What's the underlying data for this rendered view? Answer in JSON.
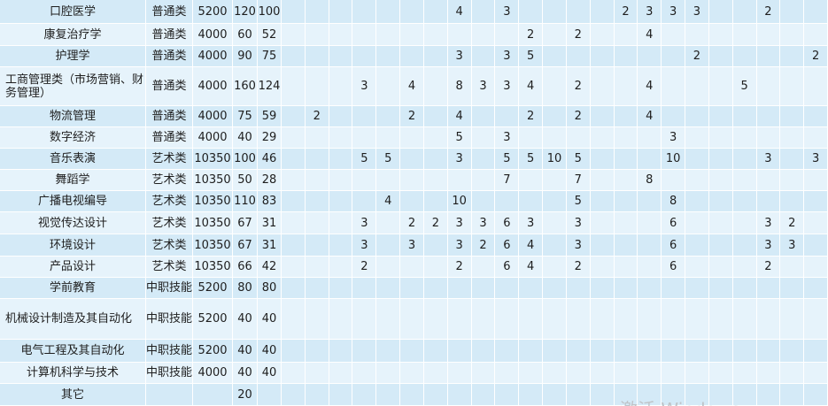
{
  "table": {
    "rows": [
      {
        "name": "口腔医学",
        "type": "普通类",
        "fee": 5200,
        "plan": 120,
        "count": 100,
        "cells": [
          null,
          null,
          null,
          null,
          null,
          null,
          null,
          4,
          null,
          3,
          null,
          null,
          null,
          null,
          2,
          3,
          3,
          3,
          null,
          null,
          2,
          null,
          null
        ]
      },
      {
        "name": "康复治疗学",
        "type": "普通类",
        "fee": 4000,
        "plan": 60,
        "count": 52,
        "cells": [
          null,
          null,
          null,
          null,
          null,
          null,
          null,
          null,
          null,
          null,
          2,
          null,
          2,
          null,
          null,
          4,
          null,
          null,
          null,
          null,
          null,
          null,
          null
        ]
      },
      {
        "name": "护理学",
        "type": "普通类",
        "fee": 4000,
        "plan": 90,
        "count": 75,
        "cells": [
          null,
          null,
          null,
          null,
          null,
          null,
          null,
          3,
          null,
          3,
          5,
          null,
          null,
          null,
          null,
          null,
          null,
          2,
          null,
          null,
          null,
          null,
          2
        ]
      },
      {
        "name": "工商管理类（市场营销、财务管理）",
        "type": "普通类",
        "fee": 4000,
        "plan": 160,
        "count": 124,
        "cells": [
          null,
          null,
          null,
          3,
          null,
          4,
          null,
          8,
          3,
          3,
          4,
          null,
          2,
          null,
          null,
          4,
          null,
          null,
          null,
          5,
          null,
          null,
          null
        ]
      },
      {
        "name": "物流管理",
        "type": "普通类",
        "fee": 4000,
        "plan": 75,
        "count": 59,
        "cells": [
          null,
          2,
          null,
          null,
          null,
          2,
          null,
          4,
          null,
          null,
          2,
          null,
          2,
          null,
          null,
          4,
          null,
          null,
          null,
          null,
          null,
          null,
          null
        ]
      },
      {
        "name": "数字经济",
        "type": "普通类",
        "fee": 4000,
        "plan": 40,
        "count": 29,
        "cells": [
          null,
          null,
          null,
          null,
          null,
          null,
          null,
          5,
          null,
          3,
          null,
          null,
          null,
          null,
          null,
          null,
          3,
          null,
          null,
          null,
          null,
          null,
          null
        ]
      },
      {
        "name": "音乐表演",
        "type": "艺术类",
        "fee": 10350,
        "plan": 100,
        "count": 46,
        "cells": [
          null,
          null,
          null,
          5,
          5,
          null,
          null,
          3,
          null,
          5,
          5,
          10,
          5,
          null,
          null,
          null,
          10,
          null,
          null,
          null,
          3,
          null,
          3
        ]
      },
      {
        "name": "舞蹈学",
        "type": "艺术类",
        "fee": 10350,
        "plan": 50,
        "count": 28,
        "cells": [
          null,
          null,
          null,
          null,
          null,
          null,
          null,
          null,
          null,
          7,
          null,
          null,
          7,
          null,
          null,
          8,
          null,
          null,
          null,
          null,
          null,
          null,
          null
        ]
      },
      {
        "name": "广播电视编导",
        "type": "艺术类",
        "fee": 10350,
        "plan": 110,
        "count": 83,
        "cells": [
          null,
          null,
          null,
          null,
          4,
          null,
          null,
          10,
          null,
          null,
          null,
          null,
          5,
          null,
          null,
          null,
          8,
          null,
          null,
          null,
          null,
          null,
          null
        ]
      },
      {
        "name": "视觉传达设计",
        "type": "艺术类",
        "fee": 10350,
        "plan": 67,
        "count": 31,
        "cells": [
          null,
          null,
          null,
          3,
          null,
          2,
          2,
          3,
          3,
          6,
          3,
          null,
          3,
          null,
          null,
          null,
          6,
          null,
          null,
          null,
          3,
          2,
          null
        ]
      },
      {
        "name": "环境设计",
        "type": "艺术类",
        "fee": 10350,
        "plan": 67,
        "count": 31,
        "cells": [
          null,
          null,
          null,
          3,
          null,
          3,
          null,
          3,
          2,
          6,
          4,
          null,
          3,
          null,
          null,
          null,
          6,
          null,
          null,
          null,
          3,
          3,
          null
        ]
      },
      {
        "name": "产品设计",
        "type": "艺术类",
        "fee": 10350,
        "plan": 66,
        "count": 42,
        "cells": [
          null,
          null,
          null,
          2,
          null,
          null,
          null,
          2,
          null,
          6,
          4,
          null,
          2,
          null,
          null,
          null,
          6,
          null,
          null,
          null,
          2,
          null,
          null
        ]
      },
      {
        "name": "学前教育",
        "type": "中职技能",
        "fee": 5200,
        "plan": 80,
        "count": 80,
        "cells": [
          null,
          null,
          null,
          null,
          null,
          null,
          null,
          null,
          null,
          null,
          null,
          null,
          null,
          null,
          null,
          null,
          null,
          null,
          null,
          null,
          null,
          null,
          null
        ]
      },
      {
        "name": "机械设计制造及其自动化",
        "type": "中职技能",
        "fee": 5200,
        "plan": 40,
        "count": 40,
        "cells": [
          null,
          null,
          null,
          null,
          null,
          null,
          null,
          null,
          null,
          null,
          null,
          null,
          null,
          null,
          null,
          null,
          null,
          null,
          null,
          null,
          null,
          null,
          null
        ]
      },
      {
        "name": "电气工程及其自动化",
        "type": "中职技能",
        "fee": 5200,
        "plan": 40,
        "count": 40,
        "cells": [
          null,
          null,
          null,
          null,
          null,
          null,
          null,
          null,
          null,
          null,
          null,
          null,
          null,
          null,
          null,
          null,
          null,
          null,
          null,
          null,
          null,
          null,
          null
        ]
      },
      {
        "name": "计算机科学与技术",
        "type": "中职技能",
        "fee": 4000,
        "plan": 40,
        "count": 40,
        "cells": [
          null,
          null,
          null,
          null,
          null,
          null,
          null,
          null,
          null,
          null,
          null,
          null,
          null,
          null,
          null,
          null,
          null,
          null,
          null,
          null,
          null,
          null,
          null
        ]
      },
      {
        "name": "其它",
        "type": null,
        "fee": null,
        "plan": 20,
        "count": null,
        "cells": [
          null,
          null,
          null,
          null,
          null,
          null,
          null,
          null,
          null,
          null,
          null,
          null,
          null,
          null,
          null,
          null,
          null,
          null,
          null,
          null,
          null,
          null,
          null
        ]
      }
    ]
  },
  "watermark": "激活 Windows"
}
